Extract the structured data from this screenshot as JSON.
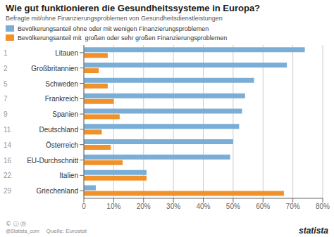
{
  "chart_data": {
    "type": "bar",
    "orientation": "horizontal",
    "title": "Wie gut funktionieren die Gesundheitssysteme in Europa?",
    "subtitle": "Befragte mit/ohne Finanzierungsproblemen von Gesundheitsdienstleistungen",
    "categories": [
      "Litauen",
      "Großbritannien",
      "Schweden",
      "Frankreich",
      "Spanien",
      "Deutschland",
      "Österreich",
      "EU-Durchschnitt",
      "Italien",
      "Griechenland"
    ],
    "ranks": [
      "1",
      "2",
      "5",
      "7",
      "9",
      "11",
      "14",
      "16",
      "22",
      "29"
    ],
    "series": [
      {
        "name": "Bevölkerungsanteil ohne oder mit wenigen Finanzierungsproblemen",
        "color": "#7aaed6",
        "values": [
          74,
          68,
          57,
          54,
          53,
          52,
          50,
          49,
          21,
          4
        ]
      },
      {
        "name": "Bevölkerungsanteil mit  großen oder sehr großen Finanzierungsproblemen",
        "color": "#f0922b",
        "values": [
          8,
          5,
          8,
          10,
          12,
          6,
          9,
          13,
          21,
          67
        ]
      }
    ],
    "xlim": [
      0,
      80
    ],
    "xticks": [
      0,
      {
        "value": 10,
        "label": "10%"
      },
      {
        "value": 20,
        "label": "20%"
      },
      {
        "value": 30,
        "label": "30%"
      },
      {
        "value": 40,
        "label": "40%"
      },
      {
        "value": 50,
        "label": "50%"
      },
      {
        "value": 60,
        "label": "60%"
      },
      {
        "value": 70,
        "label": "70%"
      },
      {
        "value": 80,
        "label": "80%"
      }
    ],
    "grid": true,
    "annotations": [
      "© ⓘ Ⓡ",
      "@Statista_com",
      "Quelle: Eurostat",
      "statista"
    ]
  }
}
